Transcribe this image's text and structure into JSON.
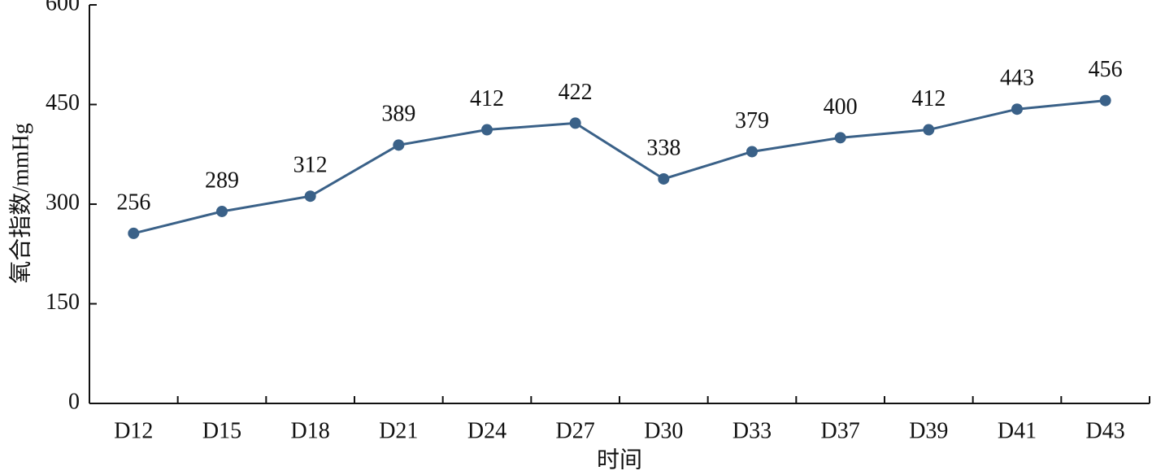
{
  "chart_data": {
    "type": "line",
    "x_label": "时间",
    "y_label": "氧合指数/mmHg",
    "categories": [
      "D12",
      "D15",
      "D18",
      "D21",
      "D24",
      "D27",
      "D30",
      "D33",
      "D37",
      "D39",
      "D41",
      "D43"
    ],
    "series": [
      {
        "name": null,
        "color": "#3a6188",
        "values": [
          256,
          289,
          312,
          389,
          412,
          422,
          338,
          379,
          400,
          412,
          443,
          456
        ]
      }
    ],
    "ylim": [
      0,
      600
    ],
    "yticks": [
      0,
      150,
      300,
      450,
      600
    ]
  }
}
